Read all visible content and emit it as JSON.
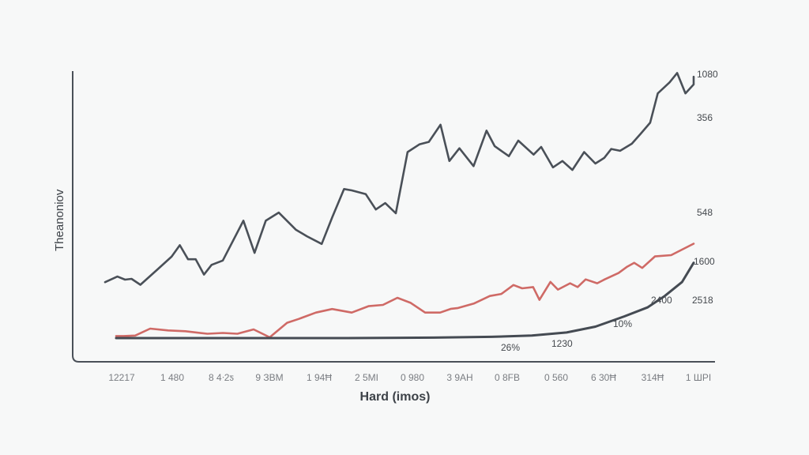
{
  "chart_data": {
    "type": "line",
    "title": "",
    "xlabel": "Hard (imos)",
    "ylabel": "Theanoniov",
    "x_tick_labels": [
      "12217",
      "1 480",
      "8 4ᐧ2ƽ",
      "9 ЗВМ",
      "1 94Ħ",
      "2 5MI",
      "0 980",
      "3 9AH",
      "0 8FB",
      "0 560",
      "6 30Ħ",
      "314Ħ",
      "1 ШРI"
    ],
    "xlim": [
      0,
      100
    ],
    "ylim": [
      0,
      100
    ],
    "grid": false,
    "legend": "none",
    "colors": {
      "series_dark": "#4a5058",
      "series_red": "#cf6a66",
      "series_baseline": "#454b53",
      "axis": "#4a5058",
      "background": "#f7f8f8"
    },
    "series": [
      {
        "name": "dark",
        "color": "#4a5058",
        "x": [
          0,
          2.1,
          3.4,
          4.5,
          6.0,
          8.9,
          11.3,
          12.7,
          14.1,
          15.4,
          16.8,
          18.1,
          20.0,
          23.5,
          25.4,
          27.3,
          29.5,
          32.4,
          34.3,
          36.8,
          38.6,
          40.6,
          41.9,
          44.3,
          46.0,
          47.6,
          49.4,
          51.4,
          53.4,
          55.0,
          57.0,
          58.5,
          60.2,
          62.6,
          64.8,
          66.2,
          68.6,
          70.2,
          72.8,
          74.1,
          76.1,
          77.7,
          79.4,
          81.4,
          83.3,
          84.8,
          86.0,
          87.5,
          89.5,
          91.0,
          92.6,
          93.9,
          95.9,
          97.2,
          98.6,
          100.0,
          100.0
        ],
        "y": [
          12.0,
          14.2,
          13.0,
          13.3,
          11.0,
          17.0,
          22.0,
          26.5,
          21.0,
          21.0,
          15.0,
          18.8,
          20.5,
          36.1,
          23.5,
          36.1,
          39.3,
          32.6,
          30.0,
          27.0,
          37.5,
          48.5,
          48.0,
          46.5,
          40.5,
          43.0,
          39.0,
          63.0,
          66.0,
          67.0,
          73.7,
          59.5,
          64.5,
          57.5,
          71.4,
          65.3,
          61.4,
          67.5,
          62.0,
          65.0,
          57.0,
          59.5,
          56.0,
          63.0,
          58.5,
          60.7,
          64.2,
          63.5,
          66.3,
          70.2,
          74.5,
          86.0,
          90.3,
          94.0,
          86.0,
          89.5,
          92.5
        ]
      },
      {
        "name": "red",
        "color": "#cf6a66",
        "x": [
          0,
          1.3,
          3.3,
          5.9,
          9.0,
          12.0,
          15.8,
          18.5,
          21.0,
          23.8,
          26.6,
          29.6,
          31.6,
          34.6,
          37.4,
          40.8,
          43.7,
          46.2,
          48.7,
          51.0,
          53.5,
          56.1,
          58.0,
          59.2,
          62.0,
          64.7,
          66.7,
          68.8,
          70.3,
          72.2,
          73.3,
          75.2,
          76.5,
          78.6,
          79.9,
          81.3,
          83.3,
          84.6,
          87.0,
          88.5,
          89.7,
          91.1,
          93.3,
          96.1,
          100.0
        ],
        "y": [
          0.8,
          0.8,
          1.0,
          3.7,
          3.0,
          2.7,
          1.7,
          2.0,
          1.7,
          3.4,
          0.3,
          6.0,
          7.5,
          10.0,
          11.4,
          10.0,
          12.5,
          13.0,
          15.8,
          13.8,
          10.0,
          10.0,
          11.5,
          11.8,
          13.6,
          16.5,
          17.3,
          20.8,
          19.5,
          20.0,
          15.0,
          22.0,
          19.0,
          21.5,
          20.0,
          23.0,
          21.5,
          23.0,
          25.5,
          28.0,
          29.5,
          27.5,
          32.0,
          32.5,
          37.0
        ]
      },
      {
        "name": "baseline",
        "color": "#454b53",
        "x": [
          0,
          20,
          40,
          55,
          65,
          72,
          78,
          83,
          88,
          92,
          95,
          98,
          100
        ],
        "y": [
          0,
          0,
          0,
          0.2,
          0.5,
          1.0,
          2.2,
          4.5,
          8.5,
          12.0,
          16.5,
          22.0,
          29.5
        ]
      }
    ],
    "annotations": [
      {
        "text": "1080",
        "series": "dark",
        "at": "end"
      },
      {
        "text": "356",
        "series": "dark",
        "at": "upper-right"
      },
      {
        "text": "548",
        "series": "red",
        "at": "right"
      },
      {
        "text": "1600",
        "series": "baseline",
        "at": "right"
      },
      {
        "text": "2400",
        "series": "baseline",
        "at": "mid-right"
      },
      {
        "text": "2518",
        "series": "baseline",
        "at": "far-right"
      },
      {
        "text": "10%",
        "series": "baseline",
        "at": "rise"
      },
      {
        "text": "1230",
        "series": "baseline",
        "at": "bend"
      },
      {
        "text": "26%",
        "series": "baseline",
        "at": "flat"
      }
    ]
  }
}
